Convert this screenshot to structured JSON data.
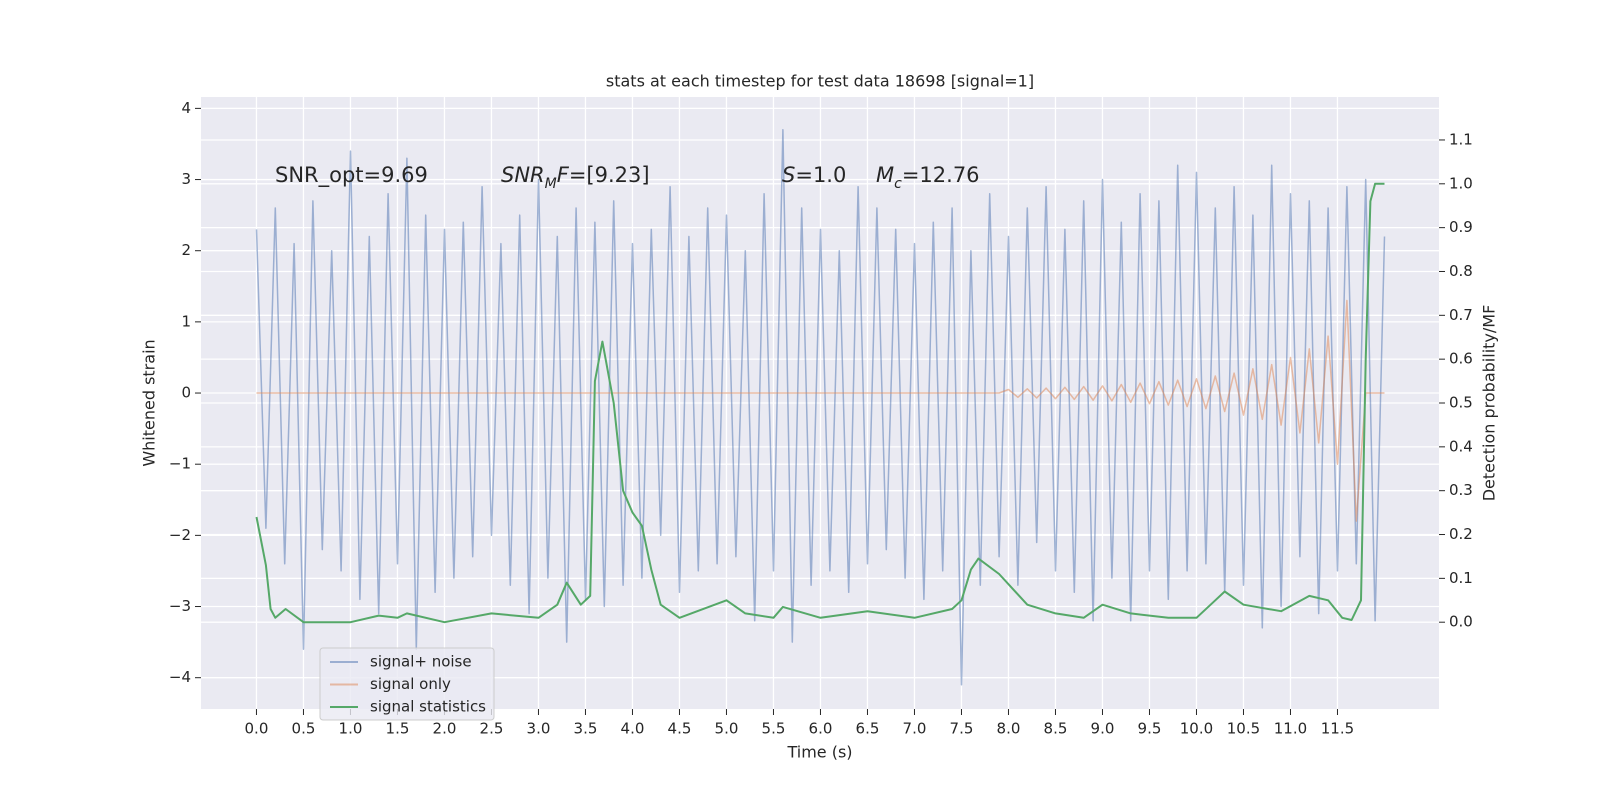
{
  "chart_data": {
    "type": "line",
    "title": "stats at each timestep for test data 18698 [signal=1]",
    "xlabel": "Time (s)",
    "ylabel": "Whitened strain",
    "y2label": "Detection probability/MF",
    "annotations": [
      {
        "parts": [
          {
            "text": "SNR_opt=9.69"
          }
        ]
      },
      {
        "parts": [
          {
            "text": "SNR",
            "italic": true
          },
          {
            "text": "M",
            "italic": true,
            "sub": true
          },
          {
            "text": "F",
            "italic": true
          },
          {
            "text": "=[9.23]"
          }
        ]
      },
      {
        "parts": [
          {
            "text": "S",
            "italic": true
          },
          {
            "text": "=1.0"
          }
        ]
      },
      {
        "parts": [
          {
            "text": "M",
            "italic": true
          },
          {
            "text": "c",
            "italic": true,
            "sub": true
          },
          {
            "text": "=12.76"
          }
        ]
      }
    ],
    "x": [
      0,
      0.1,
      0.2,
      0.3,
      0.4,
      0.5,
      0.6,
      0.7,
      0.8,
      0.9,
      1,
      1.1,
      1.2,
      1.3,
      1.4,
      1.5,
      1.6,
      1.7,
      1.8,
      1.9,
      2,
      2.1,
      2.2,
      2.3,
      2.4,
      2.5,
      2.6,
      2.7,
      2.8,
      2.9,
      3,
      3.1,
      3.2,
      3.3,
      3.4,
      3.5,
      3.6,
      3.7,
      3.8,
      3.9,
      4,
      4.1,
      4.2,
      4.3,
      4.4,
      4.5,
      4.6,
      4.7,
      4.8,
      4.9,
      5,
      5.1,
      5.2,
      5.3,
      5.4,
      5.5,
      5.6,
      5.7,
      5.8,
      5.9,
      6,
      6.1,
      6.2,
      6.3,
      6.4,
      6.5,
      6.6,
      6.7,
      6.8,
      6.9,
      7,
      7.1,
      7.2,
      7.3,
      7.4,
      7.5,
      7.6,
      7.7,
      7.8,
      7.9,
      8,
      8.1,
      8.2,
      8.3,
      8.4,
      8.5,
      8.6,
      8.7,
      8.8,
      8.9,
      9,
      9.1,
      9.2,
      9.3,
      9.4,
      9.5,
      9.6,
      9.7,
      9.8,
      9.9,
      10,
      10.1,
      10.2,
      10.3,
      10.4,
      10.5,
      10.6,
      10.7,
      10.8,
      10.9,
      11,
      11.1,
      11.2,
      11.3,
      11.4,
      11.5,
      11.6,
      11.7,
      11.8,
      11.9,
      12
    ],
    "series": [
      {
        "name": "signal+ noise",
        "color": "#4c72b0",
        "opacity": 0.5,
        "values": [
          2.3,
          -1.9,
          2.6,
          -2.4,
          2.1,
          -3.6,
          2.7,
          -2.2,
          2.0,
          -2.5,
          3.4,
          -2.9,
          2.2,
          -3.1,
          2.8,
          -2.4,
          3.3,
          -3.6,
          2.5,
          -2.8,
          2.3,
          -2.6,
          2.4,
          -2.3,
          2.9,
          -2.0,
          2.1,
          -2.7,
          2.5,
          -3.1,
          3.0,
          -2.6,
          2.2,
          -3.5,
          2.6,
          -2.9,
          2.4,
          -3.0,
          2.7,
          -2.7,
          2.1,
          -2.6,
          2.3,
          -2.0,
          2.9,
          -2.8,
          2.2,
          -2.5,
          2.6,
          -2.4,
          2.5,
          -2.3,
          2.0,
          -3.2,
          2.8,
          -2.5,
          3.7,
          -3.5,
          2.6,
          -2.7,
          2.3,
          -2.5,
          2.0,
          -2.8,
          2.9,
          -2.4,
          2.6,
          -2.2,
          2.3,
          -2.6,
          2.1,
          -2.9,
          2.4,
          -2.5,
          2.6,
          -4.1,
          2.0,
          -2.7,
          2.8,
          -2.3,
          2.2,
          -2.7,
          2.6,
          -2.1,
          2.9,
          -2.5,
          2.3,
          -2.8,
          2.7,
          -3.2,
          3.0,
          -2.6,
          2.4,
          -3.2,
          2.8,
          -2.5,
          2.7,
          -2.9,
          3.2,
          -2.5,
          3.1,
          -2.4,
          2.6,
          -2.8,
          2.9,
          -2.7,
          2.5,
          -3.3,
          3.2,
          -3.0,
          2.8,
          -2.3,
          2.7,
          -3.1,
          2.6,
          -2.5,
          2.9,
          -2.4,
          3.0,
          -3.2,
          2.2
        ]
      },
      {
        "name": "signal only",
        "color": "#dd8452",
        "opacity": 0.5,
        "values": [
          0,
          0,
          0,
          0,
          0,
          0,
          0,
          0,
          0,
          0,
          0,
          0,
          0,
          0,
          0,
          0,
          0,
          0,
          0,
          0,
          0,
          0,
          0,
          0,
          0,
          0,
          0,
          0,
          0,
          0,
          0,
          0,
          0,
          0,
          0,
          0,
          0,
          0,
          0,
          0,
          0,
          0,
          0,
          0,
          0,
          0,
          0,
          0,
          0,
          0,
          0,
          0,
          0,
          0,
          0,
          0,
          0,
          0,
          0,
          0,
          0,
          0,
          0,
          0,
          0,
          0,
          0,
          0,
          0,
          0,
          0,
          0,
          0,
          0,
          0,
          0,
          0,
          0,
          0,
          0,
          0.05,
          -0.06,
          0.06,
          -0.07,
          0.07,
          -0.08,
          0.08,
          -0.09,
          0.09,
          -0.1,
          0.1,
          -0.11,
          0.12,
          -0.13,
          0.14,
          -0.15,
          0.16,
          -0.17,
          0.18,
          -0.19,
          0.2,
          -0.22,
          0.24,
          -0.26,
          0.28,
          -0.31,
          0.34,
          -0.37,
          0.4,
          -0.45,
          0.5,
          -0.56,
          0.62,
          -0.7,
          0.8,
          -1.0,
          1.3,
          -1.8,
          0,
          0,
          0
        ]
      },
      {
        "name": "signal statistics",
        "color": "#55a868",
        "opacity": 1,
        "axis": "y2",
        "x": [
          0,
          0.1,
          0.15,
          0.2,
          0.31,
          0.5,
          1.0,
          1.3,
          1.5,
          1.6,
          2.0,
          2.5,
          3.0,
          3.2,
          3.3,
          3.45,
          3.55,
          3.6,
          3.68,
          3.8,
          3.9,
          4.0,
          4.1,
          4.2,
          4.3,
          4.5,
          5.0,
          5.2,
          5.5,
          5.6,
          6.0,
          6.5,
          7.0,
          7.4,
          7.5,
          7.6,
          7.68,
          7.9,
          8.2,
          8.5,
          8.8,
          9.0,
          9.3,
          9.7,
          10.0,
          10.2,
          10.3,
          10.5,
          10.9,
          11.2,
          11.4,
          11.55,
          11.65,
          11.75,
          11.8,
          11.85,
          11.9,
          12.0
        ],
        "values": [
          0.24,
          0.13,
          0.03,
          0.01,
          0.03,
          0.0,
          0.0,
          0.015,
          0.01,
          0.02,
          0.0,
          0.02,
          0.01,
          0.04,
          0.09,
          0.04,
          0.06,
          0.55,
          0.64,
          0.5,
          0.3,
          0.25,
          0.22,
          0.12,
          0.04,
          0.01,
          0.05,
          0.02,
          0.01,
          0.035,
          0.01,
          0.025,
          0.01,
          0.03,
          0.05,
          0.12,
          0.145,
          0.11,
          0.04,
          0.02,
          0.01,
          0.04,
          0.02,
          0.01,
          0.01,
          0.05,
          0.07,
          0.04,
          0.025,
          0.06,
          0.05,
          0.01,
          0.005,
          0.05,
          0.6,
          0.96,
          1.0,
          1.0
        ]
      }
    ],
    "xlim": [
      -0.59,
      12.58
    ],
    "xticks": [
      {
        "value": 0,
        "label": "0.0"
      },
      0.5,
      {
        "value": 1,
        "label": "1.0"
      },
      1.5,
      {
        "value": 2,
        "label": "2.0"
      },
      2.5,
      {
        "value": 3,
        "label": "3.0"
      },
      3.5,
      {
        "value": 4,
        "label": "4.0"
      },
      4.5,
      {
        "value": 5,
        "label": "5.0"
      },
      5.5,
      {
        "value": 6,
        "label": "6.0"
      },
      6.5,
      {
        "value": 7,
        "label": "7.0"
      },
      7.5,
      {
        "value": 8,
        "label": "8.0"
      },
      8.5,
      {
        "value": 9,
        "label": "9.0"
      },
      9.5,
      {
        "value": 10,
        "label": "10.0"
      },
      10.5,
      {
        "value": 11,
        "label": "11.0"
      },
      11.5
    ],
    "ylim": [
      -4.44,
      4.16
    ],
    "yticks": [
      {
        "value": -4,
        "label": "−4"
      },
      {
        "value": -3,
        "label": "−3"
      },
      {
        "value": -2,
        "label": "−2"
      },
      {
        "value": -1,
        "label": "−1"
      },
      0,
      1,
      2,
      3,
      4
    ],
    "y2lim": [
      -0.198,
      1.198
    ],
    "y2ticks": [
      {
        "value": 0,
        "label": "0.0"
      },
      0.1,
      0.2,
      0.3,
      0.4,
      0.5,
      0.6,
      0.7,
      0.8,
      0.9,
      {
        "value": 1,
        "label": "1.0"
      },
      1.1
    ],
    "grid": true,
    "legend": "lower left"
  }
}
